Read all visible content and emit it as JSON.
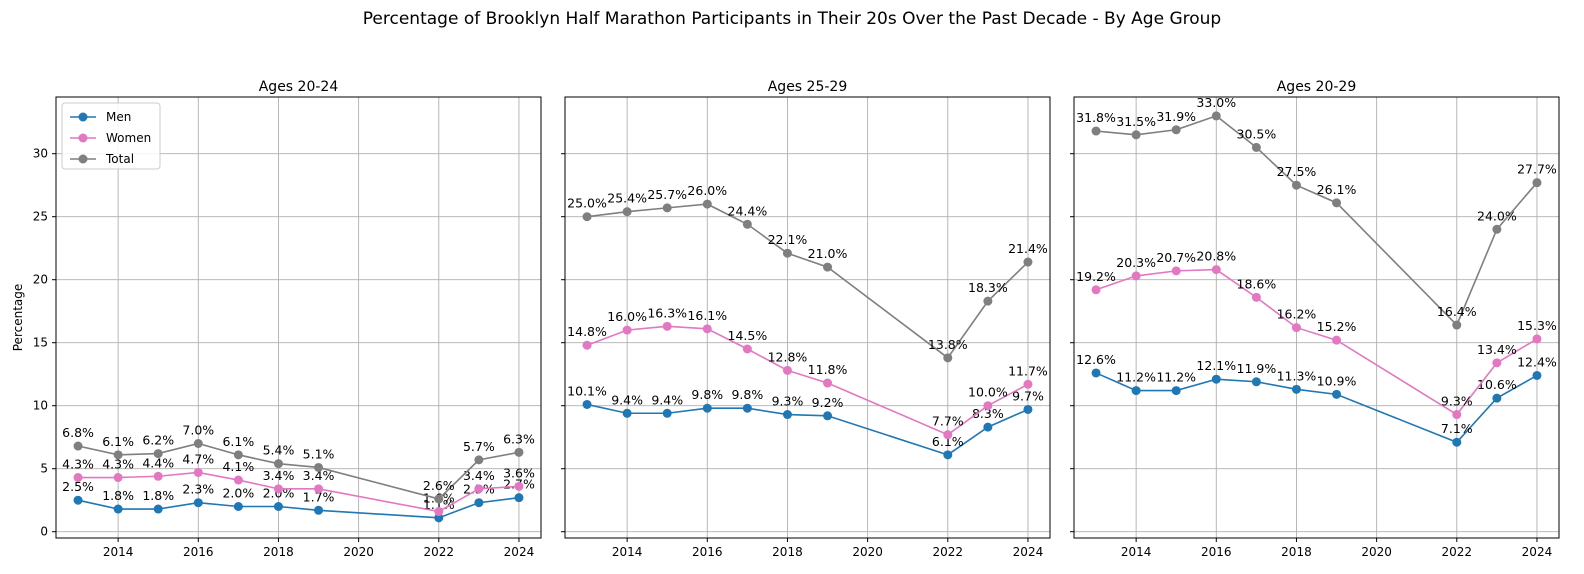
{
  "figure": {
    "title": "Percentage of Brooklyn Half Marathon Participants in Their 20s Over the Past Decade - By Age Group"
  },
  "colors": {
    "Men": "#1f77b4",
    "Women": "#e377c2",
    "Total": "#7f7f7f",
    "grid": "#b0b0b0"
  },
  "legend": {
    "entries": [
      "Men",
      "Women",
      "Total"
    ],
    "location": "upper-left",
    "panel": 0
  },
  "chart_data": [
    {
      "type": "line",
      "title": "Ages 20-24",
      "ylabel": "Percentage",
      "xlabel": "",
      "grid": true,
      "x": [
        2013,
        2014,
        2015,
        2016,
        2017,
        2018,
        2019,
        2022,
        2023,
        2024
      ],
      "xticks": [
        "2014",
        "2016",
        "2018",
        "2020",
        "2022",
        "2024"
      ],
      "yticks": [
        "0",
        "5",
        "10",
        "15",
        "20",
        "25",
        "30"
      ],
      "xlim": [
        2012.45,
        2024.55
      ],
      "ylim": [
        -0.5,
        34.5
      ],
      "series": [
        {
          "name": "Men",
          "values": [
            2.5,
            1.8,
            1.8,
            2.3,
            2.0,
            2.0,
            1.7,
            1.1,
            2.3,
            2.7
          ],
          "labels": [
            "2.5%",
            "1.8%",
            "1.8%",
            "2.3%",
            "2.0%",
            "2.0%",
            "1.7%",
            "1.1%",
            "2.3%",
            "2.7%"
          ]
        },
        {
          "name": "Women",
          "values": [
            4.3,
            4.3,
            4.4,
            4.7,
            4.1,
            3.4,
            3.4,
            1.6,
            3.4,
            3.6
          ],
          "labels": [
            "4.3%",
            "4.3%",
            "4.4%",
            "4.7%",
            "4.1%",
            "3.4%",
            "3.4%",
            "1.6%",
            "3.4%",
            "3.6%"
          ]
        },
        {
          "name": "Total",
          "values": [
            6.8,
            6.1,
            6.2,
            7.0,
            6.1,
            5.4,
            5.1,
            2.6,
            5.7,
            6.3
          ],
          "labels": [
            "6.8%",
            "6.1%",
            "6.2%",
            "7.0%",
            "6.1%",
            "5.4%",
            "5.1%",
            "2.6%",
            "5.7%",
            "6.3%"
          ]
        }
      ]
    },
    {
      "type": "line",
      "title": "Ages 25-29",
      "ylabel": "",
      "xlabel": "",
      "grid": true,
      "x": [
        2013,
        2014,
        2015,
        2016,
        2017,
        2018,
        2019,
        2022,
        2023,
        2024
      ],
      "xticks": [
        "2014",
        "2016",
        "2018",
        "2020",
        "2022",
        "2024"
      ],
      "yticks": [],
      "xlim": [
        2012.45,
        2024.55
      ],
      "ylim": [
        -0.5,
        34.5
      ],
      "series": [
        {
          "name": "Men",
          "values": [
            10.1,
            9.4,
            9.4,
            9.8,
            9.8,
            9.3,
            9.2,
            6.1,
            8.3,
            9.7
          ],
          "labels": [
            "10.1%",
            "9.4%",
            "9.4%",
            "9.8%",
            "9.8%",
            "9.3%",
            "9.2%",
            "6.1%",
            "8.3%",
            "9.7%"
          ]
        },
        {
          "name": "Women",
          "values": [
            14.8,
            16.0,
            16.3,
            16.1,
            14.5,
            12.8,
            11.8,
            7.7,
            10.0,
            11.7
          ],
          "labels": [
            "14.8%",
            "16.0%",
            "16.3%",
            "16.1%",
            "14.5%",
            "12.8%",
            "11.8%",
            "7.7%",
            "10.0%",
            "11.7%"
          ]
        },
        {
          "name": "Total",
          "values": [
            25.0,
            25.4,
            25.7,
            26.0,
            24.4,
            22.1,
            21.0,
            13.8,
            18.3,
            21.4
          ],
          "labels": [
            "25.0%",
            "25.4%",
            "25.7%",
            "26.0%",
            "24.4%",
            "22.1%",
            "21.0%",
            "13.8%",
            "18.3%",
            "21.4%"
          ]
        }
      ]
    },
    {
      "type": "line",
      "title": "Ages 20-29",
      "ylabel": "",
      "xlabel": "",
      "grid": true,
      "x": [
        2013,
        2014,
        2015,
        2016,
        2017,
        2018,
        2019,
        2022,
        2023,
        2024
      ],
      "xticks": [
        "2014",
        "2016",
        "2018",
        "2020",
        "2022",
        "2024"
      ],
      "yticks": [],
      "xlim": [
        2012.45,
        2024.55
      ],
      "ylim": [
        -0.5,
        34.5
      ],
      "series": [
        {
          "name": "Men",
          "values": [
            12.6,
            11.2,
            11.2,
            12.1,
            11.9,
            11.3,
            10.9,
            7.1,
            10.6,
            12.4
          ],
          "labels": [
            "12.6%",
            "11.2%",
            "11.2%",
            "12.1%",
            "11.9%",
            "11.3%",
            "10.9%",
            "7.1%",
            "10.6%",
            "12.4%"
          ]
        },
        {
          "name": "Women",
          "values": [
            19.2,
            20.3,
            20.7,
            20.8,
            18.6,
            16.2,
            15.2,
            9.3,
            13.4,
            15.3
          ],
          "labels": [
            "19.2%",
            "20.3%",
            "20.7%",
            "20.8%",
            "18.6%",
            "16.2%",
            "15.2%",
            "9.3%",
            "13.4%",
            "15.3%"
          ]
        },
        {
          "name": "Total",
          "values": [
            31.8,
            31.5,
            31.9,
            33.0,
            30.5,
            27.5,
            26.1,
            16.4,
            24.0,
            27.7
          ],
          "labels": [
            "31.8%",
            "31.5%",
            "31.9%",
            "33.0%",
            "30.5%",
            "27.5%",
            "26.1%",
            "16.4%",
            "24.0%",
            "27.7%"
          ]
        }
      ]
    }
  ]
}
